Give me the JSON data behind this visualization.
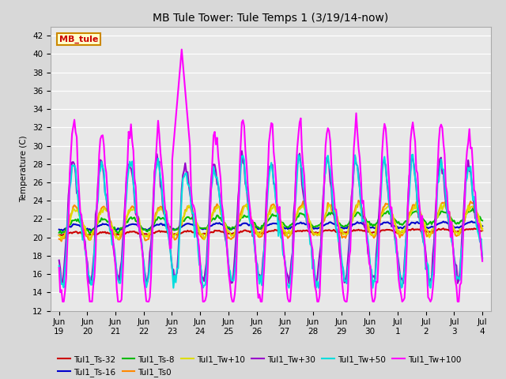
{
  "title": "MB Tule Tower: Tule Temps 1 (3/19/14-now)",
  "ylabel": "Temperature (C)",
  "ylim": [
    12,
    43
  ],
  "yticks": [
    12,
    14,
    16,
    18,
    20,
    22,
    24,
    26,
    28,
    30,
    32,
    34,
    36,
    38,
    40,
    42
  ],
  "bg_color": "#d8d8d8",
  "plot_bg_color": "#e8e8e8",
  "x_labels": [
    "Jun\n19",
    "Jun\n20",
    "Jun\n21",
    "Jun\n22",
    "Jun\n23",
    "Jun\n24",
    "Jun\n25",
    "Jun\n26",
    "Jun\n27",
    "Jun\n28",
    "Jun\n29",
    "Jun\n30",
    "Jul\n1",
    "Jul\n2",
    "Jul\n3",
    "Jul\n4"
  ],
  "x_tick_positions": [
    0,
    1,
    2,
    3,
    4,
    5,
    6,
    7,
    8,
    9,
    10,
    11,
    12,
    13,
    14,
    15
  ],
  "series": [
    {
      "name": "Tul1_Ts-32",
      "color": "#cc0000",
      "lw": 1.5,
      "zorder": 5
    },
    {
      "name": "Tul1_Ts-16",
      "color": "#0000cc",
      "lw": 1.5,
      "zorder": 6
    },
    {
      "name": "Tul1_Ts-8",
      "color": "#00bb00",
      "lw": 1.5,
      "zorder": 7
    },
    {
      "name": "Tul1_Ts0",
      "color": "#ff8800",
      "lw": 1.5,
      "zorder": 8
    },
    {
      "name": "Tul1_Tw+10",
      "color": "#dddd00",
      "lw": 1.5,
      "zorder": 9
    },
    {
      "name": "Tul1_Tw+30",
      "color": "#9900cc",
      "lw": 1.5,
      "zorder": 10
    },
    {
      "name": "Tul1_Tw+50",
      "color": "#00dddd",
      "lw": 1.5,
      "zorder": 11
    },
    {
      "name": "Tul1_Tw+100",
      "color": "#ff00ff",
      "lw": 1.5,
      "zorder": 12
    }
  ],
  "annotation_box": {
    "text": "MB_tule",
    "facecolor": "#ffffcc",
    "edgecolor": "#cc8800",
    "textcolor": "#cc0000",
    "fontsize": 8,
    "fontweight": "bold"
  },
  "title_fontsize": 10,
  "tick_fontsize": 7.5,
  "legend_fontsize": 7.5,
  "figsize": [
    6.4,
    4.8
  ],
  "dpi": 100
}
